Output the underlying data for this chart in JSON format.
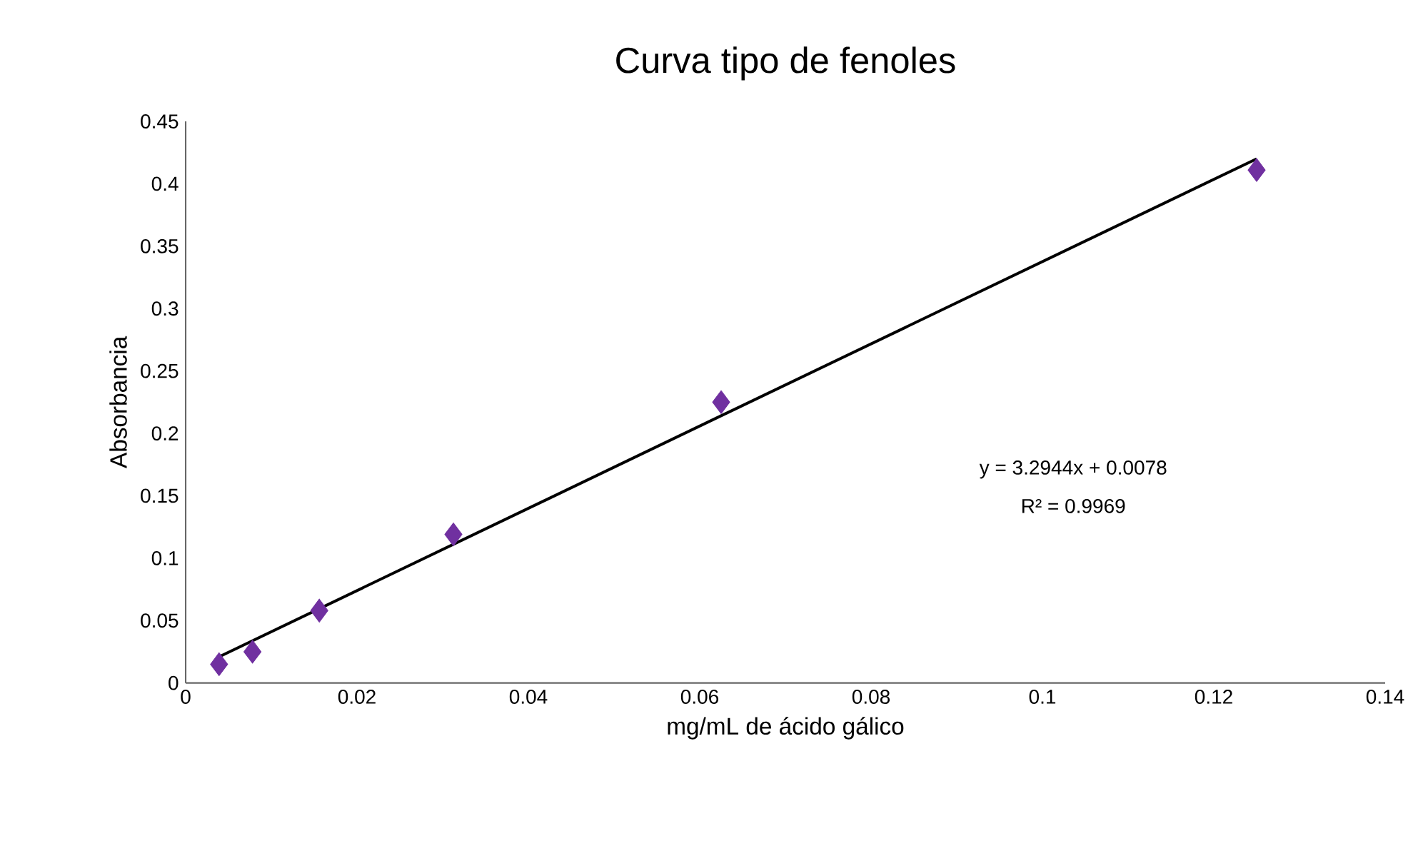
{
  "chart_data": {
    "type": "scatter",
    "title": "Curva tipo de fenoles",
    "xlabel": "mg/mL de ácido gálico",
    "ylabel": "Absorbancia",
    "series": [
      {
        "type": "scatter",
        "color": "#7030a0",
        "marker": "diamond",
        "x": [
          0.0039,
          0.0078,
          0.0156,
          0.03125,
          0.0625,
          0.125
        ],
        "values": [
          0.015,
          0.025,
          0.058,
          0.119,
          0.225,
          0.411
        ]
      },
      {
        "type": "line",
        "color": "#000000",
        "marker": "none",
        "line_style": "solid",
        "x": [
          0.0039,
          0.125
        ],
        "values": [
          0.021,
          0.42
        ]
      }
    ],
    "annotations": [
      "y = 3.2944x + 0.0078",
      "R² = 0.9969"
    ],
    "xlim": [
      0,
      0.14
    ],
    "xticks": [
      0,
      0.02,
      0.04,
      0.06,
      0.08,
      0.1,
      0.12,
      0.14
    ],
    "ylim": [
      0,
      0.45
    ],
    "yticks": [
      0,
      0.05,
      0.1,
      0.15,
      0.2,
      0.25,
      0.3,
      0.35,
      0.4,
      0.45
    ],
    "grid": false
  }
}
